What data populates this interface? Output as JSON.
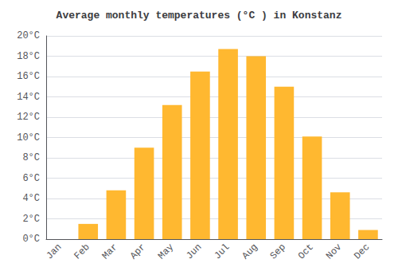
{
  "chart_data": {
    "type": "bar",
    "title": "Average monthly temperatures (°C ) in Konstanz",
    "categories": [
      "Jan",
      "Feb",
      "Mar",
      "Apr",
      "May",
      "Jun",
      "Jul",
      "Aug",
      "Sep",
      "Oct",
      "Nov",
      "Dec"
    ],
    "values": [
      0.0,
      1.5,
      4.8,
      9.0,
      13.2,
      16.5,
      18.7,
      18.0,
      15.0,
      10.1,
      4.6,
      0.9
    ],
    "color": "#FFB830",
    "ylim": [
      0,
      20
    ],
    "yticks": [
      {
        "value": 0,
        "label": "0°C"
      },
      {
        "value": 2,
        "label": "2°C"
      },
      {
        "value": 4,
        "label": "4°C"
      },
      {
        "value": 6,
        "label": "6°C"
      },
      {
        "value": 8,
        "label": "8°C"
      },
      {
        "value": 10,
        "label": "10°C"
      },
      {
        "value": 12,
        "label": "12°C"
      },
      {
        "value": 14,
        "label": "14°C"
      },
      {
        "value": 16,
        "label": "16°C"
      },
      {
        "value": 18,
        "label": "18°C"
      },
      {
        "value": 20,
        "label": "20°C"
      }
    ],
    "grid": true
  }
}
